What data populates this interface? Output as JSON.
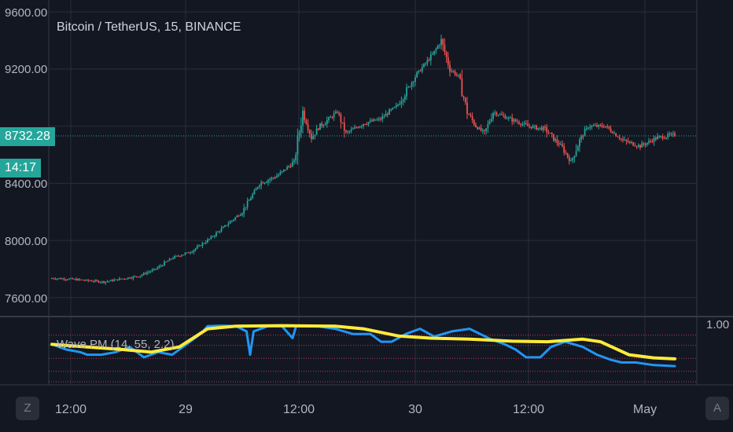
{
  "chart_title": "Bitcoin / TetherUS, 15, BINANCE",
  "price_axis_labels": [
    "9600.00",
    "9200.00",
    "8400.00",
    "8000.00",
    "7600.00"
  ],
  "current_price": "8732.28",
  "countdown": "14:17",
  "indicator_title": "Wave PM (14, 55, 2.2)",
  "indicator_axis_label": "1.00",
  "time_axis_labels": [
    "12:00",
    "29",
    "12:00",
    "30",
    "12:00",
    "May"
  ],
  "buttons": {
    "left": "Z",
    "right": "A"
  },
  "colors": {
    "background": "#131722",
    "up": "#26a69a",
    "down": "#ef5350",
    "price_line": "#26a69a",
    "wave_blue": "#2196f3",
    "wave_yellow": "#ffeb3b"
  },
  "chart_data": [
    {
      "type": "candlestick",
      "title": "Bitcoin / TetherUS, 15, BINANCE",
      "ylim": [
        7500,
        9700
      ],
      "yticks": [
        9600,
        9200,
        8400,
        8000,
        7600
      ],
      "xticks": [
        "12:00",
        "29",
        "12:00",
        "30",
        "12:00",
        "May"
      ],
      "last_price": 8732.28,
      "close_path": [
        [
          0,
          7735
        ],
        [
          10,
          7730
        ],
        [
          20,
          7720
        ],
        [
          30,
          7710
        ],
        [
          40,
          7730
        ],
        [
          50,
          7750
        ],
        [
          60,
          7800
        ],
        [
          70,
          7880
        ],
        [
          80,
          7920
        ],
        [
          90,
          8000
        ],
        [
          100,
          8100
        ],
        [
          110,
          8200
        ],
        [
          120,
          8400
        ],
        [
          130,
          8450
        ],
        [
          140,
          8550
        ],
        [
          145,
          8900
        ],
        [
          150,
          8720
        ],
        [
          155,
          8800
        ],
        [
          165,
          8900
        ],
        [
          170,
          8750
        ],
        [
          180,
          8820
        ],
        [
          190,
          8850
        ],
        [
          200,
          8950
        ],
        [
          205,
          9050
        ],
        [
          210,
          9150
        ],
        [
          220,
          9300
        ],
        [
          225,
          9400
        ],
        [
          230,
          9200
        ],
        [
          235,
          9150
        ],
        [
          240,
          8900
        ],
        [
          245,
          8800
        ],
        [
          250,
          8750
        ],
        [
          255,
          8900
        ],
        [
          265,
          8850
        ],
        [
          275,
          8800
        ],
        [
          285,
          8780
        ],
        [
          295,
          8650
        ],
        [
          300,
          8550
        ],
        [
          305,
          8700
        ],
        [
          310,
          8800
        ],
        [
          320,
          8800
        ],
        [
          330,
          8700
        ],
        [
          340,
          8660
        ],
        [
          350,
          8720
        ],
        [
          360,
          8740
        ]
      ]
    },
    {
      "type": "line",
      "title": "Wave PM (14, 55, 2.2)",
      "ylim": [
        0,
        1
      ],
      "series": [
        {
          "points": [
            [
              0,
              0.6
            ],
            [
              8,
              0.5
            ],
            [
              16,
              0.45
            ],
            [
              20,
              0.4
            ],
            [
              28,
              0.4
            ],
            [
              36,
              0.45
            ],
            [
              44,
              0.55
            ],
            [
              52,
              0.35
            ],
            [
              60,
              0.45
            ],
            [
              68,
              0.4
            ],
            [
              76,
              0.6
            ],
            [
              84,
              0.8
            ],
            [
              88,
              0.95
            ],
            [
              96,
              0.96
            ],
            [
              104,
              0.95
            ],
            [
              110,
              0.85
            ],
            [
              112,
              0.4
            ],
            [
              114,
              0.85
            ],
            [
              122,
              0.95
            ],
            [
              130,
              0.95
            ],
            [
              136,
              0.72
            ],
            [
              138,
              0.95
            ],
            [
              150,
              0.95
            ],
            [
              160,
              0.9
            ],
            [
              170,
              0.8
            ],
            [
              180,
              0.8
            ],
            [
              186,
              0.65
            ],
            [
              192,
              0.65
            ],
            [
              200,
              0.8
            ],
            [
              208,
              0.9
            ],
            [
              216,
              0.75
            ],
            [
              226,
              0.85
            ],
            [
              236,
              0.9
            ],
            [
              248,
              0.7
            ],
            [
              256,
              0.6
            ],
            [
              262,
              0.5
            ],
            [
              268,
              0.35
            ],
            [
              276,
              0.35
            ],
            [
              282,
              0.55
            ],
            [
              290,
              0.65
            ],
            [
              300,
              0.55
            ],
            [
              308,
              0.4
            ],
            [
              316,
              0.3
            ],
            [
              322,
              0.25
            ],
            [
              330,
              0.25
            ],
            [
              340,
              0.2
            ],
            [
              352,
              0.18
            ]
          ]
        },
        {
          "points": [
            [
              0,
              0.6
            ],
            [
              20,
              0.55
            ],
            [
              40,
              0.5
            ],
            [
              56,
              0.45
            ],
            [
              72,
              0.55
            ],
            [
              88,
              0.9
            ],
            [
              104,
              0.95
            ],
            [
              130,
              0.96
            ],
            [
              160,
              0.95
            ],
            [
              176,
              0.9
            ],
            [
              196,
              0.76
            ],
            [
              214,
              0.72
            ],
            [
              236,
              0.7
            ],
            [
              260,
              0.66
            ],
            [
              280,
              0.65
            ],
            [
              300,
              0.7
            ],
            [
              310,
              0.65
            ],
            [
              326,
              0.4
            ],
            [
              340,
              0.34
            ],
            [
              352,
              0.32
            ]
          ]
        }
      ]
    }
  ]
}
